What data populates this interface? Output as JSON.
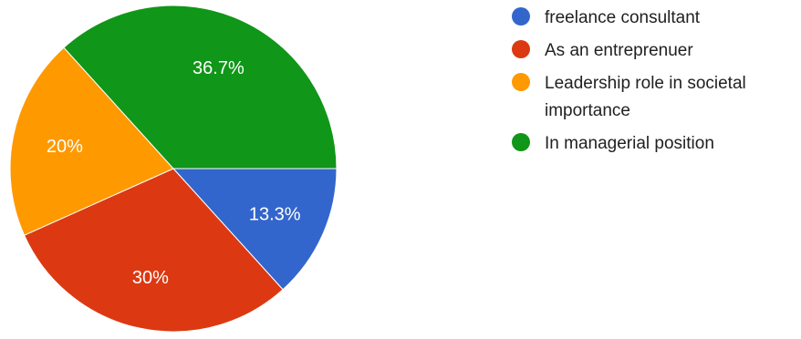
{
  "chart_data": {
    "type": "pie",
    "slices": [
      {
        "label": "freelance consultant",
        "value": 13.3,
        "display": "13.3%",
        "color": "#3366cc"
      },
      {
        "label": "As an entreprenuer",
        "value": 30,
        "display": "30%",
        "color": "#dc3912"
      },
      {
        "label": "Leadership role in societal importance",
        "display": "20%",
        "value": 20,
        "color": "#ff9900",
        "legend_lines": [
          "Leadership role in societal",
          "importance"
        ]
      },
      {
        "label": "In managerial position",
        "value": 36.7,
        "display": "36.7%",
        "color": "#109618"
      }
    ],
    "start_angle_deg": 0,
    "direction": "clockwise",
    "legend_position": "right"
  }
}
